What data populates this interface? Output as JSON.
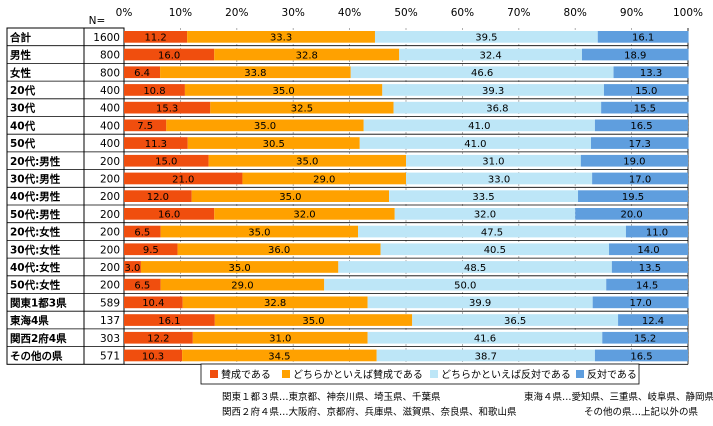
{
  "chart_data": {
    "type": "bar",
    "orientation": "horizontal",
    "stacked": true,
    "n_header": "N=",
    "xlim": [
      0,
      100
    ],
    "xticks": [
      "0%",
      "10%",
      "20%",
      "30%",
      "40%",
      "50%",
      "60%",
      "70%",
      "80%",
      "90%",
      "100%"
    ],
    "grid": true,
    "legend_position": "bottom",
    "categories": [
      "合計",
      "男性",
      "女性",
      "20代",
      "30代",
      "40代",
      "50代",
      "20代:男性",
      "30代:男性",
      "40代:男性",
      "50代:男性",
      "20代:女性",
      "30代:女性",
      "40代:女性",
      "50代:女性",
      "関東1都3県",
      "東海4県",
      "関西2府4県",
      "その他の県"
    ],
    "n": [
      "1600",
      "800",
      "800",
      "400",
      "400",
      "400",
      "400",
      "200",
      "200",
      "200",
      "200",
      "200",
      "200",
      "200",
      "200",
      "589",
      "137",
      "303",
      "571"
    ],
    "series": [
      {
        "name": "賛成である",
        "color": "#f04e0e",
        "values": [
          11.2,
          16.0,
          6.4,
          10.8,
          15.3,
          7.5,
          11.3,
          15.0,
          21.0,
          12.0,
          16.0,
          6.5,
          9.5,
          3.0,
          6.5,
          10.4,
          16.1,
          12.2,
          10.3
        ]
      },
      {
        "name": "どちらかといえば賛成である",
        "color": "#ffa100",
        "values": [
          33.3,
          32.8,
          33.8,
          35.0,
          32.5,
          35.0,
          30.5,
          35.0,
          29.0,
          35.0,
          32.0,
          35.0,
          36.0,
          35.0,
          29.0,
          32.8,
          35.0,
          31.0,
          34.5
        ]
      },
      {
        "name": "どちらかといえば反対である",
        "color": "#bde6f7",
        "values": [
          39.5,
          32.4,
          46.6,
          39.3,
          36.8,
          41.0,
          41.0,
          31.0,
          33.0,
          33.5,
          32.0,
          47.5,
          40.5,
          48.5,
          50.0,
          39.9,
          36.5,
          41.6,
          38.7
        ]
      },
      {
        "name": "反対である",
        "color": "#5f9ede",
        "values": [
          16.1,
          18.9,
          13.3,
          15.0,
          15.5,
          16.5,
          17.3,
          19.0,
          17.0,
          19.5,
          20.0,
          11.0,
          14.0,
          13.5,
          14.5,
          17.0,
          12.4,
          15.2,
          16.5
        ]
      }
    ],
    "notes": [
      "関東１都３県…東京都、神奈川県、埼玉県、千葉県",
      "東海４県…愛知県、三重県、岐阜県、静岡県",
      "関西２府４県…大阪府、京都府、兵庫県、滋賀県、奈良県、和歌山県",
      "その他の県…上記以外の県"
    ]
  }
}
